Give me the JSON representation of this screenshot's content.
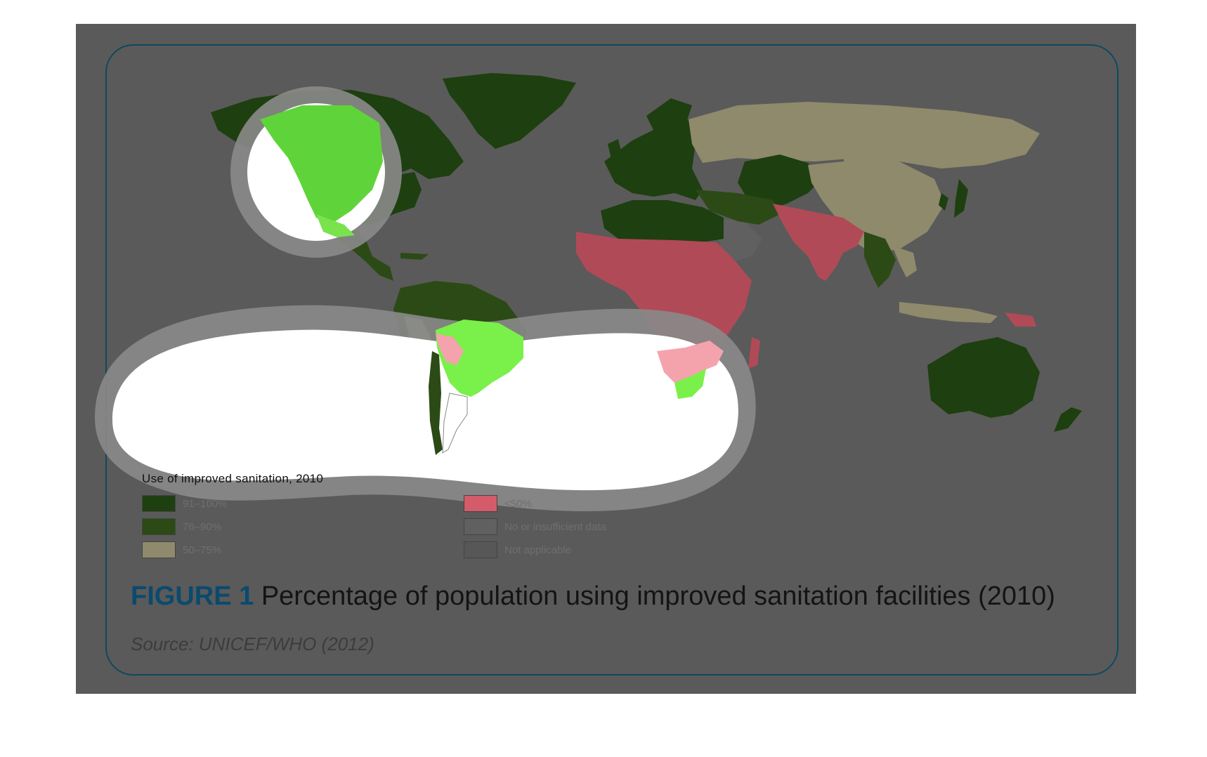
{
  "legend": {
    "title": "Use of improved sanitation, 2010",
    "items": [
      {
        "label": "91–100%",
        "color": "#1e3f10"
      },
      {
        "label": "76–90%",
        "color": "#2c4a15"
      },
      {
        "label": "50–75%",
        "color": "#8f8a6c"
      },
      {
        "label": "<50%",
        "color": "#d45b6a"
      },
      {
        "label": "No or insufficient data",
        "color": "#606060"
      },
      {
        "label": "Not applicable",
        "color": "#575757"
      }
    ]
  },
  "caption": {
    "figure_label": "FIGURE 1",
    "text": "Percentage of population using improved sanitation facilities (2010)"
  },
  "source": "Source: UNICEF/WHO (2012)",
  "colors": {
    "backdrop": "#5a5a5a",
    "card_border": "#0b4a5e",
    "ocean": "#5a5a5a",
    "highlight_green": "#5fd43a",
    "highlight_pink": "#f4a3ad",
    "spotlight": "#ffffff"
  }
}
